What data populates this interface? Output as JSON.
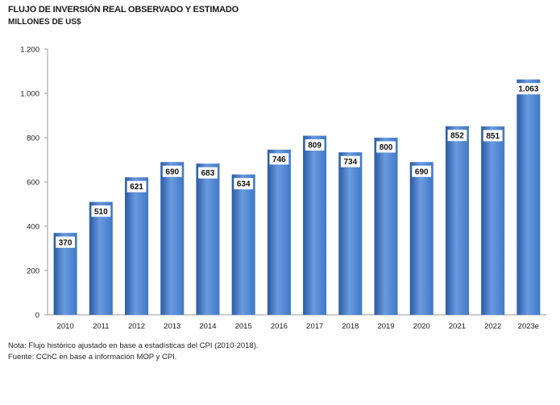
{
  "header": {
    "title": "FLUJO DE INVERSIÓN REAL OBSERVADO Y ESTIMADO",
    "subtitle": "MILLONES DE US$"
  },
  "footer": {
    "note": "Nota: Flujo histórico ajustado en base a estadísticas del CPI (2010-2018).",
    "source": "Fuente: CChC en base a información MOP y CPI."
  },
  "chart_data": {
    "type": "bar",
    "categories": [
      "2010",
      "2011",
      "2012",
      "2013",
      "2014",
      "2015",
      "2016",
      "2017",
      "2018",
      "2019",
      "2020",
      "2021",
      "2022",
      "2023e"
    ],
    "values": [
      370,
      510,
      621,
      690,
      683,
      634,
      746,
      809,
      734,
      800,
      690,
      852,
      851,
      1063
    ],
    "value_labels": [
      "370",
      "510",
      "621",
      "690",
      "683",
      "634",
      "746",
      "809",
      "734",
      "800",
      "690",
      "852",
      "851",
      "1.063"
    ],
    "y_ticks": [
      0,
      200,
      400,
      600,
      800,
      1000,
      1200
    ],
    "y_tick_labels": [
      "0",
      "200",
      "400",
      "600",
      "800",
      "1.000",
      "1.200"
    ],
    "ylim": [
      0,
      1200
    ],
    "grid": false,
    "legend": "none",
    "bar_color": "#3f78c8",
    "bar_color_dark": "#2a5aa3",
    "bar_color_light": "#6a9ade"
  }
}
